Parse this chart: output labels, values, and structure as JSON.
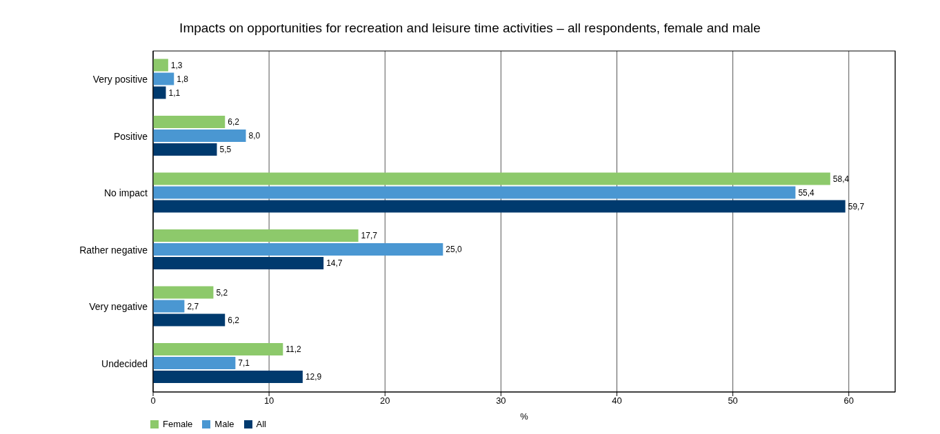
{
  "chart_data": {
    "type": "bar",
    "orientation": "horizontal",
    "title": "Impacts on opportunities for recreation and leisure time activities – all respondents, female and male",
    "xlabel": "%",
    "categories": [
      "Very positive",
      "Positive",
      "No impact",
      "Rather negative",
      "Very negative",
      "Undecided"
    ],
    "series": [
      {
        "name": "Female",
        "color": "#8dc96b",
        "values": [
          1.3,
          6.2,
          58.4,
          17.7,
          5.2,
          11.2
        ],
        "value_labels": [
          "1,3",
          "6,2",
          "58,4",
          "17,7",
          "5,2",
          "11,2"
        ]
      },
      {
        "name": "Male",
        "color": "#4a97d2",
        "values": [
          1.8,
          8.0,
          55.4,
          25.0,
          2.7,
          7.1
        ],
        "value_labels": [
          "1,8",
          "8,0",
          "55,4",
          "25,0",
          "2,7",
          "7,1"
        ]
      },
      {
        "name": "All",
        "color": "#003a6e",
        "values": [
          1.1,
          5.5,
          59.7,
          14.7,
          6.2,
          12.9
        ],
        "value_labels": [
          "1,1",
          "5,5",
          "59,7",
          "14,7",
          "6,2",
          "12,9"
        ]
      }
    ],
    "xlim": [
      0,
      64
    ],
    "xticks": [
      0,
      10,
      20,
      30,
      40,
      50,
      60
    ],
    "grid": "x",
    "legend": "bottom left"
  }
}
